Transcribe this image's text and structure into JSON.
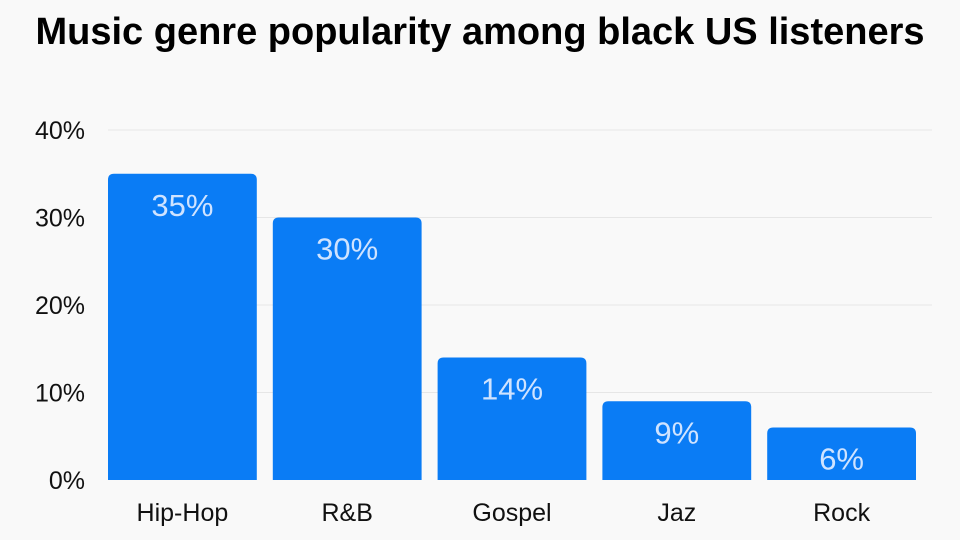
{
  "chart_data": {
    "type": "bar",
    "title": "Music genre popularity among black US listeners",
    "xlabel": "",
    "ylabel": "",
    "categories": [
      "Hip-Hop",
      "R&B",
      "Gospel",
      "Jaz",
      "Rock"
    ],
    "values": [
      35,
      30,
      14,
      9,
      6
    ],
    "data_labels": [
      "35%",
      "30%",
      "14%",
      "9%",
      "6%"
    ],
    "ylim": [
      0,
      40
    ],
    "yticks": [
      0,
      10,
      20,
      30,
      40
    ],
    "ytick_labels": [
      "0%",
      "10%",
      "20%",
      "30%",
      "40%"
    ],
    "grid": true,
    "legend": "none",
    "colors": {
      "bar": "#0a7cf5",
      "data_label": "#cfe3ff",
      "grid": "#e6e6e6",
      "background": "#f9f9f9"
    }
  }
}
